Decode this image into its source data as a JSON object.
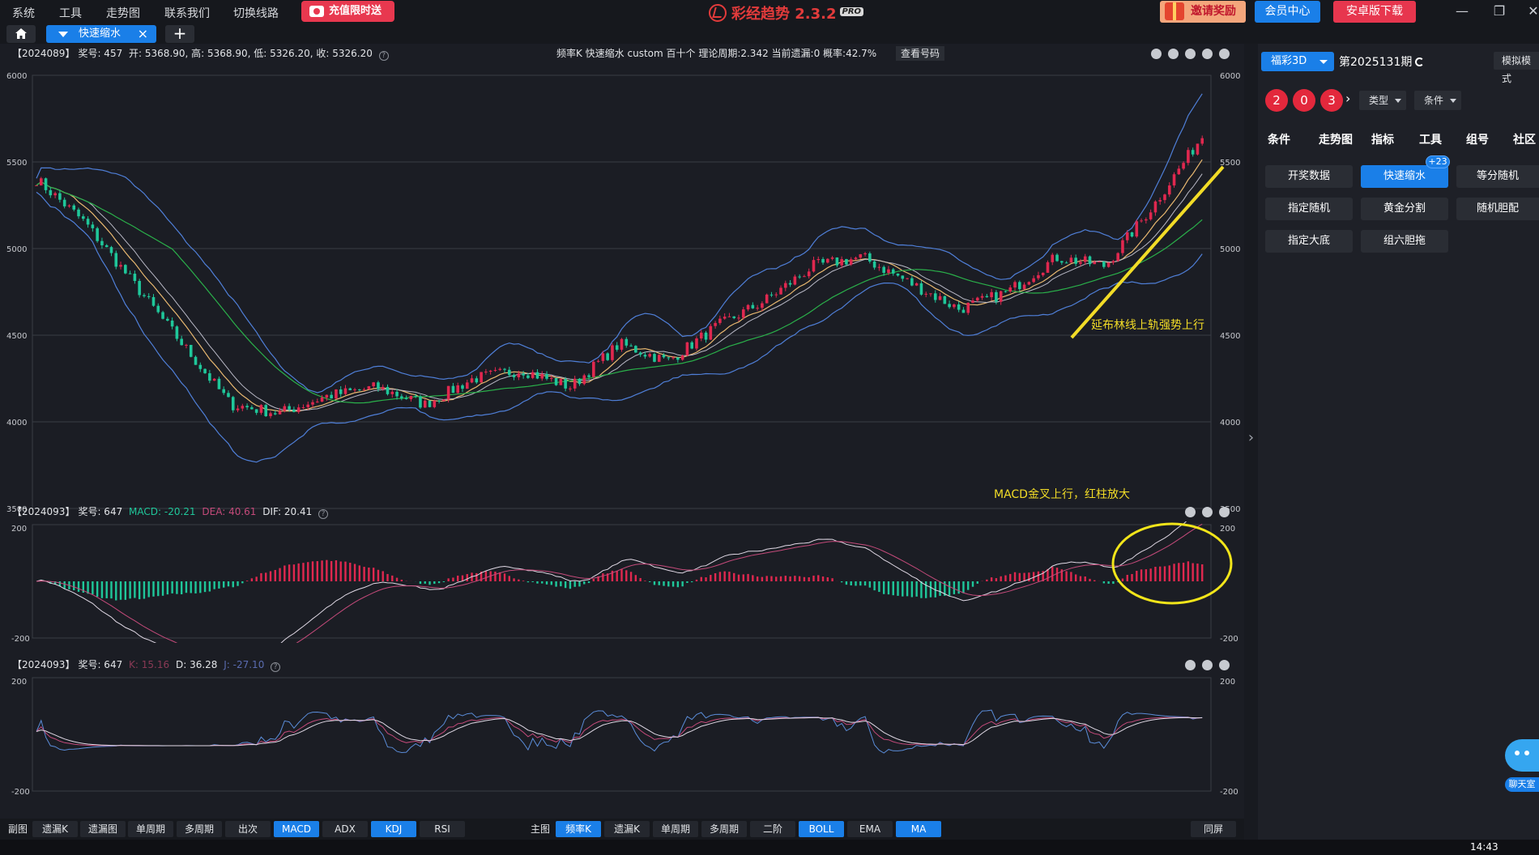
{
  "menu": {
    "items": [
      "系统",
      "工具",
      "走势图",
      "联系我们",
      "切换线路"
    ],
    "recharge_label": "充值限时送",
    "app_title": "彩经趋势 2.3.2",
    "pro_label": "PRO",
    "invite_label": "邀请奖励",
    "member_label": "会员中心",
    "android_label": "安卓版下载"
  },
  "tabs": {
    "active_label": "快速缩水"
  },
  "main_pane": {
    "period": "【2024089】",
    "prize": "奖号: 457",
    "ohlc": "开: 5368.90, 高: 5368.90, 低: 5326.20, 收: 5326.20",
    "center_info": "频率K  快速缩水  custom  百十个  理论周期:2.342  当前遗漏:0  概率:42.7%",
    "check_label": "查看号码",
    "y_ticks": [
      "6000",
      "5500",
      "5000",
      "4500",
      "4000",
      "3500"
    ],
    "annotation_boll": "延布林线上轨强势上行",
    "annotation_macd": "MACD金叉上行，红柱放大"
  },
  "macd_pane": {
    "period": "【2024093】",
    "prize": "奖号: 647",
    "macd": "MACD: -20.21",
    "dea": "DEA: 40.61",
    "dif": "DIF: 20.41",
    "y_ticks": [
      "200",
      "-200"
    ]
  },
  "kdj_pane": {
    "period": "【2024093】",
    "prize": "奖号: 647",
    "k": "K: 15.16",
    "d": "D: 36.28",
    "j": "J: -27.10",
    "y_ticks": [
      "200",
      "-200"
    ]
  },
  "bottom_bar": {
    "sub_label": "副图",
    "sub_buttons": [
      {
        "label": "遗漏K",
        "active": false
      },
      {
        "label": "遗漏图",
        "active": false
      },
      {
        "label": "单周期",
        "active": false
      },
      {
        "label": "多周期",
        "active": false
      },
      {
        "label": "出次",
        "active": false
      },
      {
        "label": "MACD",
        "active": true
      },
      {
        "label": "ADX",
        "active": false
      },
      {
        "label": "KDJ",
        "active": true
      },
      {
        "label": "RSI",
        "active": false
      }
    ],
    "main_label": "主图",
    "main_buttons": [
      {
        "label": "频率K",
        "active": true
      },
      {
        "label": "遗漏K",
        "active": false
      },
      {
        "label": "单周期",
        "active": false
      },
      {
        "label": "多周期",
        "active": false
      },
      {
        "label": "二阶",
        "active": false
      },
      {
        "label": "BOLL",
        "active": true
      },
      {
        "label": "EMA",
        "active": false
      },
      {
        "label": "MA",
        "active": true
      }
    ],
    "sync_label": "同屏"
  },
  "right_panel": {
    "lottery": "福彩3D",
    "period": "第2025131期",
    "simulate": "模拟模式",
    "balls": [
      "2",
      "0",
      "3"
    ],
    "type_label": "类型",
    "condition_label": "条件",
    "nav_tabs": [
      "条件",
      "走势图",
      "指标",
      "工具",
      "组号",
      "社区"
    ],
    "tools": [
      {
        "label": "开奖数据",
        "active": false
      },
      {
        "label": "快速缩水",
        "active": true
      },
      {
        "label": "等分随机",
        "active": false
      },
      {
        "label": "指定随机",
        "active": false
      },
      {
        "label": "黄金分割",
        "active": false
      },
      {
        "label": "随机胆配",
        "active": false
      },
      {
        "label": "指定大底",
        "active": false
      },
      {
        "label": "组六胆拖",
        "active": false
      }
    ],
    "badge": "+23",
    "chat_label": "聊天室"
  },
  "taskbar": {
    "time": "14:43"
  },
  "colors": {
    "up": "#e0284f",
    "down": "#1fc79a",
    "boll": "#4f7fd8",
    "ma_short": "#e8b870",
    "ma_long": "#2ab04a",
    "annotation": "#f2dc27",
    "accent": "#1a7fe8"
  },
  "chart_data": [
    {
      "type": "candlestick",
      "title": "频率K",
      "ylim": [
        3500,
        6000
      ],
      "y_ticks": [
        6000,
        5500,
        5000,
        4500,
        4000,
        3500
      ],
      "overlays": [
        "BOLL",
        "MA"
      ],
      "trend_waypoints_value": [
        5400,
        5150,
        4800,
        4450,
        4100,
        4050,
        4150,
        4200,
        4100,
        4250,
        4300,
        4200,
        4450,
        4350,
        4550,
        4700,
        4900,
        4950,
        4800,
        4650,
        4750,
        4950,
        4900,
        5250,
        5650
      ]
    },
    {
      "type": "line",
      "title": "MACD",
      "ylim": [
        -200,
        200
      ],
      "series": [
        {
          "name": "DIF"
        },
        {
          "name": "DEA"
        },
        {
          "name": "MACD"
        }
      ]
    },
    {
      "type": "line",
      "title": "KDJ",
      "ylim": [
        -200,
        200
      ],
      "series": [
        {
          "name": "K"
        },
        {
          "name": "D"
        },
        {
          "name": "J"
        }
      ]
    }
  ]
}
